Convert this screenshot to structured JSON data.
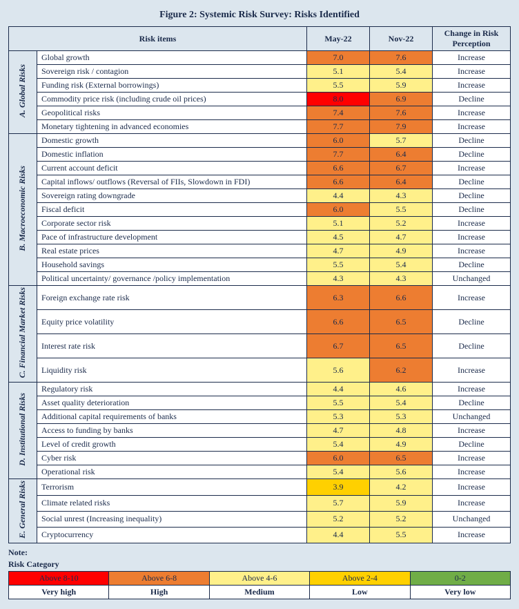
{
  "title": "Figure 2: Systemic Risk Survey: Risks Identified",
  "headers": {
    "risk_items": "Risk items",
    "may22": "May-22",
    "nov22": "Nov-22",
    "change": "Change in Risk Perception"
  },
  "colors": {
    "very_high": "#ff0000",
    "high": "#ed7d31",
    "medium": "#fff08a",
    "low": "#ffd000",
    "very_low": "#70ad47"
  },
  "groups": [
    {
      "label": "A. Global Risks",
      "rows": [
        {
          "item": "Global growth",
          "may": "7.0",
          "mayc": "high",
          "nov": "7.6",
          "novc": "high",
          "change": "Increase"
        },
        {
          "item": "Sovereign risk / contagion",
          "may": "5.1",
          "mayc": "medium",
          "nov": "5.4",
          "novc": "medium",
          "change": "Increase"
        },
        {
          "item": "Funding risk (External borrowings)",
          "may": "5.5",
          "mayc": "medium",
          "nov": "5.9",
          "novc": "medium",
          "change": "Increase"
        },
        {
          "item": "Commodity price risk (including crude oil prices)",
          "may": "8.0",
          "mayc": "very_high",
          "nov": "6.9",
          "novc": "high",
          "change": "Decline"
        },
        {
          "item": "Geopolitical risks",
          "may": "7.4",
          "mayc": "high",
          "nov": "7.6",
          "novc": "high",
          "change": "Increase"
        },
        {
          "item": "Monetary tightening in advanced economies",
          "may": "7.7",
          "mayc": "high",
          "nov": "7.9",
          "novc": "high",
          "change": "Increase"
        }
      ]
    },
    {
      "label": "B. Macroeconomic Risks",
      "rows": [
        {
          "item": "Domestic growth",
          "may": "6.0",
          "mayc": "high",
          "nov": "5.7",
          "novc": "medium",
          "change": "Decline"
        },
        {
          "item": "Domestic inflation",
          "may": "7.7",
          "mayc": "high",
          "nov": "6.4",
          "novc": "high",
          "change": "Decline"
        },
        {
          "item": "Current account deficit",
          "may": "6.6",
          "mayc": "high",
          "nov": "6.7",
          "novc": "high",
          "change": "Increase"
        },
        {
          "item": "Capital inflows/ outflows (Reversal of FIIs, Slowdown in FDI)",
          "may": "6.6",
          "mayc": "high",
          "nov": "6.4",
          "novc": "high",
          "change": "Decline"
        },
        {
          "item": "Sovereign rating downgrade",
          "may": "4.4",
          "mayc": "medium",
          "nov": "4.3",
          "novc": "medium",
          "change": "Decline"
        },
        {
          "item": "Fiscal deficit",
          "may": "6.0",
          "mayc": "high",
          "nov": "5.5",
          "novc": "medium",
          "change": "Decline"
        },
        {
          "item": "Corporate sector risk",
          "may": "5.1",
          "mayc": "medium",
          "nov": "5.2",
          "novc": "medium",
          "change": "Increase"
        },
        {
          "item": "Pace of infrastructure development",
          "may": "4.5",
          "mayc": "medium",
          "nov": "4.7",
          "novc": "medium",
          "change": "Increase"
        },
        {
          "item": "Real estate prices",
          "may": "4.7",
          "mayc": "medium",
          "nov": "4.9",
          "novc": "medium",
          "change": "Increase"
        },
        {
          "item": "Household savings",
          "may": "5.5",
          "mayc": "medium",
          "nov": "5.4",
          "novc": "medium",
          "change": "Decline"
        },
        {
          "item": "Political uncertainty/ governance /policy implementation",
          "may": "4.3",
          "mayc": "medium",
          "nov": "4.3",
          "novc": "medium",
          "change": "Unchanged"
        }
      ]
    },
    {
      "label": "C. Financial Market Risks",
      "rows": [
        {
          "item": "Foreign exchange rate risk",
          "may": "6.3",
          "mayc": "high",
          "nov": "6.6",
          "novc": "high",
          "change": "Increase"
        },
        {
          "item": "Equity price volatility",
          "may": "6.6",
          "mayc": "high",
          "nov": "6.5",
          "novc": "high",
          "change": "Decline"
        },
        {
          "item": "Interest rate risk",
          "may": "6.7",
          "mayc": "high",
          "nov": "6.5",
          "novc": "high",
          "change": "Decline"
        },
        {
          "item": "Liquidity risk",
          "may": "5.6",
          "mayc": "medium",
          "nov": "6.2",
          "novc": "high",
          "change": "Increase"
        }
      ]
    },
    {
      "label": "D. Institutional Risks",
      "rows": [
        {
          "item": "Regulatory risk",
          "may": "4.4",
          "mayc": "medium",
          "nov": "4.6",
          "novc": "medium",
          "change": "Increase"
        },
        {
          "item": "Asset quality deterioration",
          "may": "5.5",
          "mayc": "medium",
          "nov": "5.4",
          "novc": "medium",
          "change": "Decline"
        },
        {
          "item": "Additional capital requirements of banks",
          "may": "5.3",
          "mayc": "medium",
          "nov": "5.3",
          "novc": "medium",
          "change": "Unchanged"
        },
        {
          "item": "Access to funding by banks",
          "may": "4.7",
          "mayc": "medium",
          "nov": "4.8",
          "novc": "medium",
          "change": "Increase"
        },
        {
          "item": "Level of credit growth",
          "may": "5.4",
          "mayc": "medium",
          "nov": "4.9",
          "novc": "medium",
          "change": "Decline"
        },
        {
          "item": "Cyber risk",
          "may": "6.0",
          "mayc": "high",
          "nov": "6.5",
          "novc": "high",
          "change": "Increase"
        },
        {
          "item": "Operational risk",
          "may": "5.4",
          "mayc": "medium",
          "nov": "5.6",
          "novc": "medium",
          "change": "Increase"
        }
      ]
    },
    {
      "label": "E. General Risks",
      "rows": [
        {
          "item": "Terrorism",
          "may": "3.9",
          "mayc": "low",
          "nov": "4.2",
          "novc": "medium",
          "change": "Increase"
        },
        {
          "item": "Climate related risks",
          "may": "5.7",
          "mayc": "medium",
          "nov": "5.9",
          "novc": "medium",
          "change": "Increase"
        },
        {
          "item": "Social unrest (Increasing inequality)",
          "may": "5.2",
          "mayc": "medium",
          "nov": "5.2",
          "novc": "medium",
          "change": "Unchanged"
        },
        {
          "item": "Cryptocurrency",
          "may": "4.4",
          "mayc": "medium",
          "nov": "5.5",
          "novc": "medium",
          "change": "Increase"
        }
      ]
    }
  ],
  "note_label": "Note:",
  "legend_title": "Risk Category",
  "legend": [
    {
      "range": "Above 8-10",
      "label": "Very high",
      "colorKey": "very_high"
    },
    {
      "range": "Above 6-8",
      "label": "High",
      "colorKey": "high"
    },
    {
      "range": "Above 4-6",
      "label": "Medium",
      "colorKey": "medium"
    },
    {
      "range": "Above 2-4",
      "label": "Low",
      "colorKey": "low"
    },
    {
      "range": "0-2",
      "label": "Very low",
      "colorKey": "very_low"
    }
  ]
}
